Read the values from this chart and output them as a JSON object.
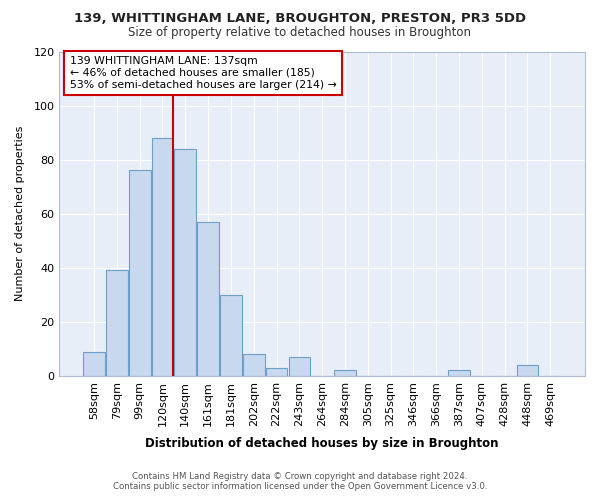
{
  "title": "139, WHITTINGHAM LANE, BROUGHTON, PRESTON, PR3 5DD",
  "subtitle": "Size of property relative to detached houses in Broughton",
  "xlabel": "Distribution of detached houses by size in Broughton",
  "ylabel": "Number of detached properties",
  "categories": [
    "58sqm",
    "79sqm",
    "99sqm",
    "120sqm",
    "140sqm",
    "161sqm",
    "181sqm",
    "202sqm",
    "222sqm",
    "243sqm",
    "264sqm",
    "284sqm",
    "305sqm",
    "325sqm",
    "346sqm",
    "366sqm",
    "387sqm",
    "407sqm",
    "428sqm",
    "448sqm",
    "469sqm"
  ],
  "values": [
    9,
    39,
    76,
    88,
    84,
    57,
    30,
    8,
    3,
    7,
    0,
    2,
    0,
    0,
    0,
    0,
    2,
    0,
    0,
    4,
    0
  ],
  "bar_color": "#c8d8ee",
  "bar_edge_color": "#6ca0c8",
  "vline_color": "#cc0000",
  "annotation_line1": "139 WHITTINGHAM LANE: 137sqm",
  "annotation_line2": "← 46% of detached houses are smaller (185)",
  "annotation_line3": "53% of semi-detached houses are larger (214) →",
  "annotation_box_color": "#ffffff",
  "annotation_box_edge": "#cc0000",
  "ylim": [
    0,
    120
  ],
  "yticks": [
    0,
    20,
    40,
    60,
    80,
    100,
    120
  ],
  "footer1": "Contains HM Land Registry data © Crown copyright and database right 2024.",
  "footer2": "Contains public sector information licensed under the Open Government Licence v3.0.",
  "background_color": "#ffffff",
  "plot_bg_color": "#e8eef8"
}
